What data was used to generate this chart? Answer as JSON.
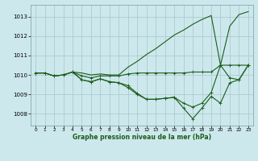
{
  "bg_color": "#cde8ec",
  "grid_color": "#aaccd0",
  "line_color": "#1a5c1a",
  "xlabel": "Graphe pression niveau de la mer (hPa)",
  "xlim": [
    -0.5,
    23.5
  ],
  "ylim": [
    1007.4,
    1013.6
  ],
  "yticks": [
    1008,
    1009,
    1010,
    1011,
    1012,
    1013
  ],
  "xticks": [
    0,
    1,
    2,
    3,
    4,
    5,
    6,
    7,
    8,
    9,
    10,
    11,
    12,
    13,
    14,
    15,
    16,
    17,
    18,
    19,
    20,
    21,
    22,
    23
  ],
  "line1_x": [
    0,
    1,
    2,
    3,
    4,
    5,
    6,
    7,
    8,
    9,
    10,
    11,
    12,
    13,
    14,
    15,
    16,
    17,
    18,
    19,
    20,
    21,
    22,
    23
  ],
  "line1_y": [
    1010.1,
    1010.1,
    1009.95,
    1010.0,
    1010.15,
    1010.1,
    1010.0,
    1010.05,
    1010.0,
    1010.0,
    1010.4,
    1010.7,
    1011.05,
    1011.35,
    1011.7,
    1012.05,
    1012.3,
    1012.6,
    1012.85,
    1013.05,
    1010.5,
    1012.5,
    1013.1,
    1013.25
  ],
  "line2_x": [
    0,
    1,
    2,
    3,
    4,
    5,
    6,
    7,
    8,
    9,
    10,
    11,
    12,
    13,
    14,
    15,
    16,
    17,
    18,
    19,
    20,
    21,
    22,
    23
  ],
  "line2_y": [
    1010.1,
    1010.1,
    1009.95,
    1010.0,
    1010.15,
    1009.95,
    1009.85,
    1009.95,
    1009.95,
    1009.95,
    1010.05,
    1010.1,
    1010.1,
    1010.1,
    1010.1,
    1010.1,
    1010.1,
    1010.15,
    1010.15,
    1010.15,
    1010.5,
    1010.5,
    1010.5,
    1010.5
  ],
  "line3_x": [
    0,
    1,
    2,
    3,
    4,
    5,
    6,
    7,
    8,
    9,
    10,
    11,
    12,
    13,
    14,
    15,
    16,
    17,
    18,
    19,
    20,
    21,
    22,
    23
  ],
  "line3_y": [
    1010.1,
    1010.1,
    1009.95,
    1010.0,
    1010.15,
    1009.75,
    1009.65,
    1009.8,
    1009.65,
    1009.6,
    1009.45,
    1009.05,
    1008.75,
    1008.75,
    1008.8,
    1008.85,
    1008.55,
    1008.35,
    1008.55,
    1009.1,
    1010.5,
    1009.85,
    1009.75,
    1010.5
  ],
  "line4_x": [
    4,
    5,
    6,
    7,
    8,
    9,
    10,
    11,
    12,
    13,
    14,
    15,
    16,
    17,
    18,
    19,
    20,
    21,
    22,
    23
  ],
  "line4_y": [
    1010.15,
    1009.75,
    1009.65,
    1009.8,
    1009.65,
    1009.6,
    1009.35,
    1009.0,
    1008.75,
    1008.75,
    1008.8,
    1008.85,
    1008.3,
    1007.75,
    1008.3,
    1008.9,
    1008.55,
    1009.6,
    1009.75,
    1010.5
  ]
}
